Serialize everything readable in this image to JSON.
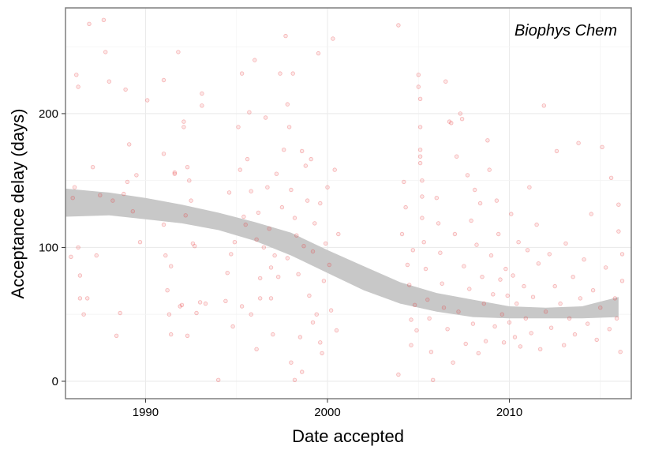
{
  "chart_data": {
    "type": "scatter",
    "title": "",
    "annotation": "Biophys Chem",
    "xlabel": "Date accepted",
    "ylabel": "Acceptance delay (days)",
    "xlim": [
      1985.6,
      2016.7
    ],
    "ylim": [
      -13,
      279
    ],
    "x_ticks": [
      1990,
      2000,
      2010
    ],
    "y_ticks": [
      0,
      100,
      200
    ],
    "grid": true,
    "point_color": "#e8383d",
    "smooth_band_color": "#c8c8c8",
    "smooth": {
      "x": [
        1985.6,
        1988,
        1990,
        1992,
        1994,
        1996,
        1998,
        2000,
        2002,
        2004,
        2006,
        2008,
        2010,
        2012,
        2014,
        2016
      ],
      "lower": [
        123,
        124,
        121,
        118,
        113,
        105,
        94,
        81,
        68,
        58,
        52,
        48,
        47,
        47,
        47,
        48
      ],
      "upper": [
        144,
        141,
        137,
        132,
        126,
        119,
        111,
        98,
        86,
        74,
        66,
        61,
        56,
        55,
        56,
        63
      ]
    },
    "points": [
      [
        1985.9,
        93
      ],
      [
        1986.0,
        137
      ],
      [
        1986.1,
        145
      ],
      [
        1986.2,
        229
      ],
      [
        1986.3,
        220
      ],
      [
        1986.3,
        100
      ],
      [
        1986.4,
        79
      ],
      [
        1986.4,
        62
      ],
      [
        1986.6,
        50
      ],
      [
        1986.8,
        62
      ],
      [
        1986.9,
        267
      ],
      [
        1987.1,
        160
      ],
      [
        1987.3,
        94
      ],
      [
        1987.5,
        139
      ],
      [
        1987.7,
        270
      ],
      [
        1987.8,
        246
      ],
      [
        1988.0,
        224
      ],
      [
        1988.2,
        135
      ],
      [
        1988.4,
        34
      ],
      [
        1988.6,
        51
      ],
      [
        1988.8,
        140
      ],
      [
        1988.9,
        218
      ],
      [
        1989.0,
        149
      ],
      [
        1989.1,
        177
      ],
      [
        1989.3,
        127
      ],
      [
        1989.5,
        154
      ],
      [
        1989.7,
        104
      ],
      [
        1990.1,
        210
      ],
      [
        1991.0,
        225
      ],
      [
        1991.0,
        170
      ],
      [
        1991.0,
        117
      ],
      [
        1991.1,
        94
      ],
      [
        1991.3,
        50
      ],
      [
        1991.4,
        35
      ],
      [
        1991.6,
        156
      ],
      [
        1991.6,
        155
      ],
      [
        1991.8,
        246
      ],
      [
        1992.0,
        57
      ],
      [
        1992.1,
        190
      ],
      [
        1992.1,
        194
      ],
      [
        1992.3,
        160
      ],
      [
        1992.3,
        34
      ],
      [
        1992.4,
        150
      ],
      [
        1992.5,
        135
      ],
      [
        1992.6,
        103
      ],
      [
        1992.7,
        101
      ],
      [
        1992.8,
        51
      ],
      [
        1993.0,
        59
      ],
      [
        1993.1,
        206
      ],
      [
        1993.1,
        215
      ],
      [
        1993.3,
        58
      ],
      [
        1991.4,
        86
      ],
      [
        1991.2,
        68
      ],
      [
        1991.9,
        56
      ],
      [
        1992.2,
        124
      ],
      [
        1994.0,
        1
      ],
      [
        1994.4,
        60
      ],
      [
        1994.5,
        81
      ],
      [
        1994.6,
        141
      ],
      [
        1994.7,
        95
      ],
      [
        1994.8,
        41
      ],
      [
        1994.9,
        104
      ],
      [
        1995.1,
        190
      ],
      [
        1995.2,
        158
      ],
      [
        1995.3,
        230
      ],
      [
        1995.4,
        123
      ],
      [
        1995.5,
        117
      ],
      [
        1995.6,
        166
      ],
      [
        1995.7,
        201
      ],
      [
        1995.8,
        142
      ],
      [
        1995.8,
        50
      ],
      [
        1996.0,
        240
      ],
      [
        1996.1,
        106
      ],
      [
        1996.2,
        126
      ],
      [
        1996.3,
        77
      ],
      [
        1996.5,
        100
      ],
      [
        1996.6,
        197
      ],
      [
        1996.8,
        114
      ],
      [
        1996.9,
        62
      ],
      [
        1997.0,
        35
      ],
      [
        1997.1,
        94
      ],
      [
        1997.2,
        155
      ],
      [
        1997.4,
        230
      ],
      [
        1997.5,
        130
      ],
      [
        1997.6,
        173
      ],
      [
        1997.7,
        258
      ],
      [
        1997.8,
        207
      ],
      [
        1997.9,
        190
      ],
      [
        1998.0,
        143
      ],
      [
        1998.1,
        230
      ],
      [
        1998.2,
        122
      ],
      [
        1998.3,
        109
      ],
      [
        1998.4,
        80
      ],
      [
        1998.5,
        33
      ],
      [
        1998.6,
        172
      ],
      [
        1998.7,
        101
      ],
      [
        1998.8,
        161
      ],
      [
        1998.9,
        135
      ],
      [
        1999.0,
        64
      ],
      [
        1999.1,
        166
      ],
      [
        1999.2,
        97
      ],
      [
        1999.3,
        118
      ],
      [
        1999.4,
        50
      ],
      [
        1999.5,
        245
      ],
      [
        1999.6,
        133
      ],
      [
        1999.7,
        21
      ],
      [
        1999.8,
        75
      ],
      [
        1999.9,
        103
      ],
      [
        2000.0,
        145
      ],
      [
        2000.1,
        87
      ],
      [
        2000.2,
        53
      ],
      [
        2000.3,
        256
      ],
      [
        2000.4,
        158
      ],
      [
        2000.5,
        38
      ],
      [
        2000.6,
        110
      ],
      [
        1996.3,
        62
      ],
      [
        1996.9,
        85
      ],
      [
        1997.3,
        78
      ],
      [
        1998.0,
        14
      ],
      [
        1998.6,
        7
      ],
      [
        1999.2,
        44
      ],
      [
        1999.6,
        29
      ],
      [
        1998.2,
        1
      ],
      [
        1997.8,
        92
      ],
      [
        1996.7,
        145
      ],
      [
        1996.1,
        24
      ],
      [
        1995.3,
        56
      ],
      [
        2003.9,
        266
      ],
      [
        2003.9,
        5
      ],
      [
        2004.1,
        110
      ],
      [
        2004.2,
        149
      ],
      [
        2004.3,
        130
      ],
      [
        2004.4,
        87
      ],
      [
        2004.5,
        72
      ],
      [
        2004.6,
        46
      ],
      [
        2004.6,
        27
      ],
      [
        2004.7,
        98
      ],
      [
        2004.8,
        57
      ],
      [
        2004.9,
        38
      ],
      [
        2005.0,
        229
      ],
      [
        2005.0,
        220
      ],
      [
        2005.1,
        211
      ],
      [
        2005.1,
        190
      ],
      [
        2005.1,
        173
      ],
      [
        2005.1,
        168
      ],
      [
        2005.1,
        163
      ],
      [
        2005.2,
        150
      ],
      [
        2005.2,
        138
      ],
      [
        2005.2,
        122
      ],
      [
        2005.3,
        104
      ],
      [
        2005.4,
        84
      ],
      [
        2005.5,
        61
      ],
      [
        2005.6,
        47
      ],
      [
        2005.7,
        22
      ],
      [
        2005.8,
        1
      ],
      [
        2006.0,
        137
      ],
      [
        2006.1,
        118
      ],
      [
        2006.2,
        96
      ],
      [
        2006.3,
        73
      ],
      [
        2006.4,
        55
      ],
      [
        2006.5,
        224
      ],
      [
        2006.6,
        39
      ],
      [
        2006.7,
        194
      ],
      [
        2006.8,
        193
      ],
      [
        2006.9,
        14
      ],
      [
        2007.0,
        110
      ],
      [
        2007.1,
        168
      ],
      [
        2007.2,
        52
      ],
      [
        2007.3,
        200
      ],
      [
        2007.4,
        196
      ],
      [
        2007.5,
        86
      ],
      [
        2007.6,
        28
      ],
      [
        2007.7,
        154
      ],
      [
        2007.8,
        69
      ],
      [
        2007.9,
        120
      ],
      [
        2008.0,
        43
      ],
      [
        2008.1,
        143
      ],
      [
        2008.2,
        102
      ],
      [
        2008.3,
        21
      ],
      [
        2008.4,
        133
      ],
      [
        2008.5,
        78
      ],
      [
        2008.6,
        58
      ],
      [
        2008.7,
        30
      ],
      [
        2008.8,
        180
      ],
      [
        2008.9,
        158
      ],
      [
        2009.0,
        94
      ],
      [
        2009.1,
        65
      ],
      [
        2009.2,
        41
      ],
      [
        2009.3,
        135
      ],
      [
        2009.4,
        110
      ],
      [
        2009.5,
        76
      ],
      [
        2009.6,
        50
      ],
      [
        2009.7,
        29
      ],
      [
        2009.8,
        84
      ],
      [
        2009.9,
        64
      ],
      [
        2010.0,
        44
      ],
      [
        2010.1,
        125
      ],
      [
        2010.2,
        79
      ],
      [
        2010.3,
        33
      ],
      [
        2010.4,
        58
      ],
      [
        2010.5,
        104
      ],
      [
        2010.6,
        26
      ],
      [
        2010.8,
        71
      ],
      [
        2010.9,
        47
      ],
      [
        2011.0,
        98
      ],
      [
        2011.1,
        145
      ],
      [
        2011.2,
        36
      ],
      [
        2011.3,
        63
      ],
      [
        2011.5,
        117
      ],
      [
        2011.6,
        88
      ],
      [
        2011.7,
        24
      ],
      [
        2011.9,
        206
      ],
      [
        2012.0,
        52
      ],
      [
        2012.2,
        95
      ],
      [
        2012.3,
        40
      ],
      [
        2012.5,
        71
      ],
      [
        2012.6,
        172
      ],
      [
        2012.8,
        58
      ],
      [
        2013.0,
        27
      ],
      [
        2013.1,
        103
      ],
      [
        2013.3,
        47
      ],
      [
        2013.5,
        78
      ],
      [
        2013.6,
        35
      ],
      [
        2013.8,
        178
      ],
      [
        2013.9,
        62
      ],
      [
        2014.1,
        91
      ],
      [
        2014.3,
        43
      ],
      [
        2014.5,
        125
      ],
      [
        2014.6,
        68
      ],
      [
        2014.8,
        31
      ],
      [
        2015.0,
        55
      ],
      [
        2015.1,
        175
      ],
      [
        2015.3,
        85
      ],
      [
        2015.5,
        39
      ],
      [
        2015.6,
        152
      ],
      [
        2015.8,
        62
      ],
      [
        2015.9,
        47
      ],
      [
        2016.0,
        112
      ],
      [
        2016.0,
        132
      ],
      [
        2016.1,
        22
      ],
      [
        2016.2,
        95
      ],
      [
        2016.2,
        75
      ]
    ]
  }
}
